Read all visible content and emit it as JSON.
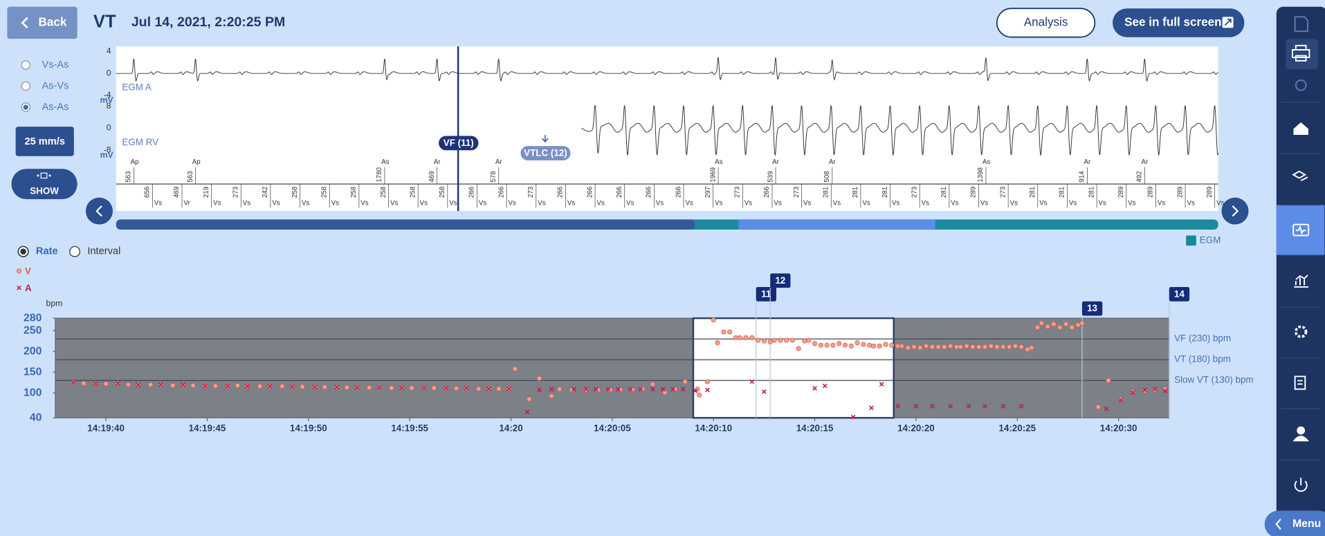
{
  "header": {
    "back": "Back",
    "title": "VT",
    "datetime": "Jul 14, 2021, 2:20:25 PM",
    "analysis": "Analysis",
    "fullscreen": "See in full screen"
  },
  "controls": {
    "modes": [
      "Vs-As",
      "As-Vs",
      "As-As"
    ],
    "selected_mode": "As-As",
    "speed": "25 mm/s",
    "show": "SHOW"
  },
  "egm": {
    "unit": "mV",
    "channels": [
      {
        "name": "EGM A",
        "ticks": [
          4,
          0,
          -4
        ]
      },
      {
        "name": "EGM RV",
        "ticks": [
          8,
          0,
          -8
        ]
      }
    ],
    "episode_markers": [
      "VF (11)",
      "VTLC (12)"
    ],
    "atrial_markers": [
      {
        "label": "Ap",
        "interval": 563
      },
      {
        "label": "Ap",
        "interval": 563
      },
      {
        "label": "As",
        "interval": 1780
      },
      {
        "label": "Ar",
        "interval": 469
      },
      {
        "label": "Ar",
        "interval": 578
      },
      {
        "label": "As",
        "interval": 1969
      },
      {
        "label": "Ar",
        "interval": 539
      },
      {
        "label": "Ar",
        "interval": 508
      },
      {
        "label": "As",
        "interval": 1398
      },
      {
        "label": "Ar",
        "interval": 914
      },
      {
        "label": "Ar",
        "interval": 492
      }
    ],
    "ventricular_markers": [
      {
        "label": "Vs",
        "interval": 656
      },
      {
        "label": "Vr",
        "interval": 469
      },
      {
        "label": "Vs",
        "interval": 219
      },
      {
        "label": "Vs",
        "interval": 273
      },
      {
        "label": "Vs",
        "interval": 242
      },
      {
        "label": "Vs",
        "interval": 258
      },
      {
        "label": "Vs",
        "interval": 258
      },
      {
        "label": "Vs",
        "interval": 258
      },
      {
        "label": "Vs",
        "interval": 258
      },
      {
        "label": "Vs",
        "interval": 258
      },
      {
        "label": "Vs",
        "interval": 258
      },
      {
        "label": "Vs",
        "interval": 266
      },
      {
        "label": "Vs",
        "interval": 266
      },
      {
        "label": "Vs",
        "interval": 273
      },
      {
        "label": "Vs",
        "interval": 266
      },
      {
        "label": "Vs",
        "interval": 266
      },
      {
        "label": "Vs",
        "interval": 266
      },
      {
        "label": "Vs",
        "interval": 266
      },
      {
        "label": "Vs",
        "interval": 266
      },
      {
        "label": "Vs",
        "interval": 297
      },
      {
        "label": "Vs",
        "interval": 273
      },
      {
        "label": "Vs",
        "interval": 266
      },
      {
        "label": "Vs",
        "interval": 273
      },
      {
        "label": "Vs",
        "interval": 281
      },
      {
        "label": "Vs",
        "interval": 281
      },
      {
        "label": "Vs",
        "interval": 281
      },
      {
        "label": "Vs",
        "interval": 273
      },
      {
        "label": "Vs",
        "interval": 281
      },
      {
        "label": "Vs",
        "interval": 289
      },
      {
        "label": "Vs",
        "interval": 273
      },
      {
        "label": "Vs",
        "interval": 281
      },
      {
        "label": "Vs",
        "interval": 281
      },
      {
        "label": "Vs",
        "interval": 281
      },
      {
        "label": "Vs",
        "interval": 289
      },
      {
        "label": "Vs",
        "interval": 289
      },
      {
        "label": "Vs",
        "interval": 289
      },
      {
        "label": "Vs",
        "interval": 289
      }
    ],
    "legend": "EGM"
  },
  "trend": {
    "views": [
      "Rate",
      "Interval"
    ],
    "selected_view": "Rate"
  },
  "chart_data": {
    "type": "scatter",
    "y_label": "bpm",
    "series": [
      {
        "name": "V",
        "color": "#f2a08f",
        "marker": "circle",
        "x": [
          "14:19:38.4",
          "14:19:38.9",
          "14:19:39.5",
          "14:19:40.0",
          "14:19:40.6",
          "14:19:41.1",
          "14:19:41.6",
          "14:19:42.2",
          "14:19:42.7",
          "14:19:43.3",
          "14:19:43.8",
          "14:19:44.3",
          "14:19:44.9",
          "14:19:45.4",
          "14:19:46.0",
          "14:19:46.5",
          "14:19:47.0",
          "14:19:47.6",
          "14:19:48.1",
          "14:19:48.7",
          "14:19:49.2",
          "14:19:49.7",
          "14:19:50.3",
          "14:19:50.8",
          "14:19:51.4",
          "14:19:51.9",
          "14:19:52.4",
          "14:19:53.0",
          "14:19:53.5",
          "14:19:54.1",
          "14:19:54.6",
          "14:19:55.1",
          "14:19:55.7",
          "14:19:56.2",
          "14:19:56.8",
          "14:19:57.3",
          "14:19:57.8",
          "14:19:58.4",
          "14:19:58.9",
          "14:19:59.4",
          "14:19:59.9",
          "14:20:00.2",
          "14:20:00.9",
          "14:20:01.4",
          "14:20:02.0",
          "14:20:02.4",
          "14:20:03.0",
          "14:20:03.7",
          "14:20:04.3",
          "14:20:04.9",
          "14:20:05.4",
          "14:20:06.0",
          "14:20:06.5",
          "14:20:07.0",
          "14:20:07.6",
          "14:20:08.1",
          "14:20:08.6",
          "14:20:09.2",
          "14:20:09.3",
          "14:20:09.7",
          "14:20:10.0",
          "14:20:10.2",
          "14:20:10.5",
          "14:20:10.8",
          "14:20:11.1",
          "14:20:11.3",
          "14:20:11.6",
          "14:20:11.9",
          "14:20:12.2",
          "14:20:12.5",
          "14:20:12.8",
          "14:20:13.0",
          "14:20:13.3",
          "14:20:13.6",
          "14:20:13.9",
          "14:20:14.2",
          "14:20:14.5",
          "14:20:14.7",
          "14:20:15.0",
          "14:20:15.3",
          "14:20:15.6",
          "14:20:15.9",
          "14:20:16.2",
          "14:20:16.5",
          "14:20:16.8",
          "14:20:17.1",
          "14:20:17.4",
          "14:20:17.7",
          "14:20:17.9",
          "14:20:18.2",
          "14:20:18.5",
          "14:20:18.8",
          "14:20:19.1",
          "14:20:19.3",
          "14:20:19.6",
          "14:20:19.9",
          "14:20:20.2",
          "14:20:20.5",
          "14:20:20.8",
          "14:20:21.1",
          "14:20:21.4",
          "14:20:21.7",
          "14:20:22.0",
          "14:20:22.2",
          "14:20:22.5",
          "14:20:22.8",
          "14:20:23.1",
          "14:20:23.4",
          "14:20:23.7",
          "14:20:24.0",
          "14:20:24.3",
          "14:20:24.6",
          "14:20:24.9",
          "14:20:25.2",
          "14:20:25.5",
          "14:20:25.7",
          "14:20:26.0",
          "14:20:26.2",
          "14:20:26.5",
          "14:20:26.8",
          "14:20:27.1",
          "14:20:27.4",
          "14:20:27.7",
          "14:20:28.0",
          "14:20:28.2",
          "14:20:29.0",
          "14:20:29.5",
          "14:20:30.1",
          "14:20:30.7",
          "14:20:31.3",
          "14:20:31.8",
          "14:20:32.3"
        ],
        "values": [
          125,
          123,
          122,
          122,
          123,
          120,
          119,
          120,
          120,
          118,
          120,
          118,
          117,
          117,
          117,
          118,
          116,
          116,
          116,
          116,
          115,
          115,
          114,
          114,
          114,
          113,
          113,
          113,
          113,
          112,
          112,
          112,
          112,
          112,
          111,
          111,
          111,
          110,
          110,
          110,
          110,
          158,
          85,
          135,
          93,
          109,
          107,
          107,
          107,
          107,
          108,
          108,
          110,
          121,
          101,
          109,
          127,
          109,
          95,
          127,
          276,
          221,
          247,
          247,
          233,
          233,
          233,
          233,
          227,
          225,
          223,
          227,
          227,
          227,
          227,
          207,
          225,
          227,
          219,
          215,
          215,
          215,
          219,
          215,
          213,
          221,
          217,
          215,
          213,
          213,
          217,
          215,
          213,
          213,
          209,
          211,
          209,
          213,
          211,
          211,
          211,
          213,
          211,
          211,
          213,
          211,
          211,
          211,
          213,
          211,
          211,
          211,
          213,
          211,
          205,
          209,
          258,
          268,
          260,
          266,
          258,
          266,
          258,
          264,
          268,
          66,
          130,
          85,
          103,
          105,
          107,
          109
        ]
      },
      {
        "name": "A",
        "color": "#c2185b",
        "marker": "cross",
        "x": [
          "14:19:38.4",
          "14:19:39.5",
          "14:19:40.6",
          "14:19:41.6",
          "14:19:42.7",
          "14:19:43.8",
          "14:19:44.9",
          "14:19:46.0",
          "14:19:47.0",
          "14:19:48.1",
          "14:19:49.2",
          "14:19:50.3",
          "14:19:51.4",
          "14:19:52.4",
          "14:19:53.5",
          "14:19:54.6",
          "14:19:55.7",
          "14:19:56.8",
          "14:19:57.8",
          "14:19:58.9",
          "14:19:59.9",
          "14:20:00.8",
          "14:20:01.4",
          "14:20:02.0",
          "14:20:03.1",
          "14:20:03.7",
          "14:20:04.2",
          "14:20:04.8",
          "14:20:05.3",
          "14:20:05.9",
          "14:20:06.4",
          "14:20:07.0",
          "14:20:07.5",
          "14:20:08.0",
          "14:20:08.5",
          "14:20:09.1",
          "14:20:09.7",
          "14:20:11.9",
          "14:20:12.5",
          "14:20:15.0",
          "14:20:15.5",
          "14:20:16.9",
          "14:20:17.8",
          "14:20:18.3",
          "14:20:19.1",
          "14:20:20.0",
          "14:20:20.8",
          "14:20:21.7",
          "14:20:22.6",
          "14:20:23.4",
          "14:20:24.3",
          "14:20:25.2",
          "14:20:29.4",
          "14:20:30.1",
          "14:20:30.7",
          "14:20:31.3",
          "14:20:31.8",
          "14:20:32.3"
        ],
        "values": [
          125,
          122,
          123,
          119,
          120,
          120,
          117,
          117,
          116,
          116,
          115,
          114,
          114,
          113,
          113,
          112,
          112,
          111,
          111,
          110,
          110,
          54,
          107,
          109,
          109,
          109,
          109,
          109,
          109,
          109,
          109,
          109,
          109,
          109,
          109,
          105,
          107,
          127,
          103,
          111,
          117,
          42,
          64,
          121,
          68,
          68,
          68,
          68,
          68,
          68,
          68,
          68,
          62,
          83,
          101,
          107,
          109,
          105
        ]
      }
    ],
    "xlim": [
      "14:19:37.5",
      "14:20:32.5"
    ],
    "xticks": [
      "14:19:40",
      "14:19:45",
      "14:19:50",
      "14:19:55",
      "14:20",
      "14:20:05",
      "14:20:10",
      "14:20:15",
      "14:20:20",
      "14:20:25",
      "14:20:30"
    ],
    "ylim": [
      40,
      280
    ],
    "yticks": [
      40,
      100,
      150,
      200,
      250,
      280
    ],
    "zones": [
      {
        "label": "VF (230) bpm",
        "value": 230
      },
      {
        "label": "VT (180) bpm",
        "value": 180
      },
      {
        "label": "Slow VT (130) bpm",
        "value": 130
      }
    ],
    "episodes": [
      {
        "label": "11",
        "x": "14:20:12.1"
      },
      {
        "label": "12",
        "x": "14:20:12.8"
      },
      {
        "label": "13",
        "x": "14:20:28.2"
      },
      {
        "label": "14",
        "x": "14:20:32.5"
      }
    ],
    "selection": [
      "14:20:09.0",
      "14:20:18.9"
    ]
  },
  "sidebar": {
    "menu": "Menu"
  }
}
